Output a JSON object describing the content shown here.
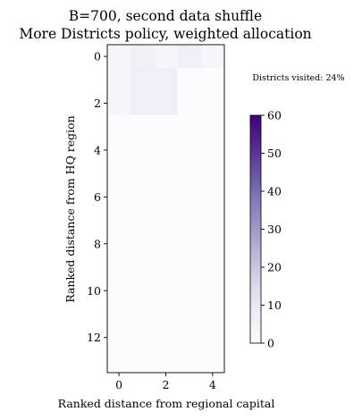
{
  "chart_data": {
    "type": "heatmap",
    "title_line1": "B=700, second data shuffle",
    "title_line2": "More Districts policy, weighted allocation",
    "xlabel": "Ranked distance from regional capital",
    "ylabel": "Ranked distance from HQ region",
    "annotation": "Districts visited: 24%",
    "columns": 5,
    "rows": 14,
    "x_ticks": [
      0,
      2,
      4
    ],
    "y_ticks": [
      0,
      2,
      4,
      6,
      8,
      10,
      12
    ],
    "colormap": "Purples",
    "colorbar": {
      "min": 0,
      "max": 60,
      "ticks": [
        0,
        10,
        20,
        30,
        40,
        50,
        60
      ]
    },
    "values": [
      [
        4,
        6,
        4,
        7,
        3
      ],
      [
        3,
        7,
        7,
        0,
        0
      ],
      [
        3,
        7,
        7,
        0,
        0
      ],
      [
        0,
        0,
        0,
        0,
        0
      ],
      [
        0,
        0,
        0,
        0,
        0
      ],
      [
        0,
        0,
        0,
        0,
        0
      ],
      [
        0,
        0,
        0,
        0,
        0
      ],
      [
        0,
        0,
        0,
        0,
        0
      ],
      [
        0,
        0,
        0,
        0,
        0
      ],
      [
        0,
        0,
        0,
        0,
        0
      ],
      [
        0,
        0,
        0,
        0,
        0
      ],
      [
        0,
        0,
        0,
        0,
        0
      ],
      [
        0,
        0,
        0,
        0,
        0
      ],
      [
        0,
        0,
        0,
        0,
        0
      ]
    ]
  }
}
